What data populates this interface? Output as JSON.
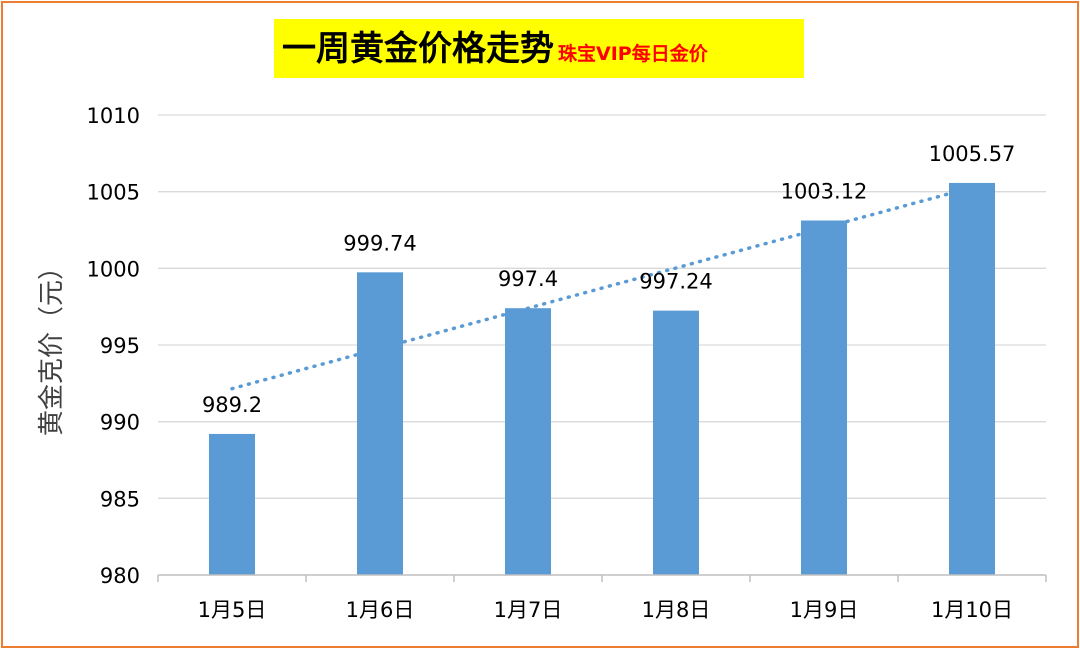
{
  "title": {
    "main": "一周黄金价格走势",
    "sub": "珠宝VIP每日金价"
  },
  "colors": {
    "bar": "#5B9BD5",
    "trendline": "#5B9BD5",
    "title_bg": "#FFFF00",
    "subtitle": "#FF0000",
    "frame": "#ED7D31",
    "grid": "#D9D9D9"
  },
  "chart_data": {
    "type": "bar",
    "categories": [
      "1月5日",
      "1月6日",
      "1月7日",
      "1月8日",
      "1月9日",
      "1月10日"
    ],
    "values": [
      989.2,
      999.74,
      997.4,
      997.24,
      1003.12,
      1005.57
    ],
    "data_labels": [
      "989.2",
      "999.74",
      "997.4",
      "997.24",
      "1003.12",
      "1005.57"
    ],
    "title": "一周黄金价格走势",
    "subtitle": "珠宝VIP每日金价",
    "xlabel": "",
    "ylabel": "黄金克价（元）",
    "ylim": [
      980,
      1010
    ],
    "yticks": [
      980,
      985,
      990,
      995,
      1000,
      1005,
      1010
    ],
    "grid": true,
    "trendline": "linear",
    "legend": "none"
  }
}
